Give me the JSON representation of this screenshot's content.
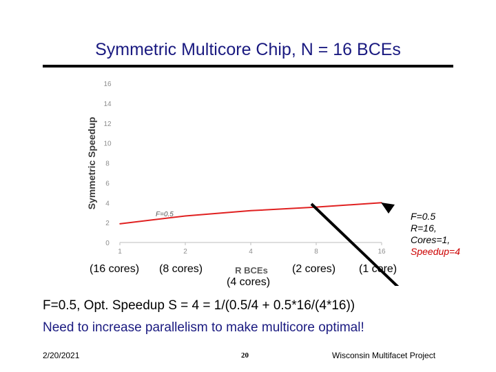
{
  "title": "Symmetric Multicore Chip, N = 16 BCEs",
  "chart_data": {
    "type": "line",
    "title": "",
    "xlabel": "R BCEs",
    "ylabel": "Symmetric Speedup",
    "x_ticks": [
      "1",
      "2",
      "4",
      "8",
      "16"
    ],
    "y_ticks": [
      "0",
      "2",
      "4",
      "6",
      "8",
      "10",
      "12",
      "14",
      "16"
    ],
    "ylim": [
      0,
      16
    ],
    "x_scale": "log2",
    "series": [
      {
        "name": "F=0.5",
        "color": "#e02020",
        "x": [
          1,
          2,
          4,
          8,
          16
        ],
        "y": [
          1.88,
          2.67,
          3.2,
          3.56,
          4.0
        ]
      }
    ],
    "series_label": "F=0.5"
  },
  "core_labels": {
    "c16": "(16 cores)",
    "c8": "(8 cores)",
    "c4": "(4 cores)",
    "c2": "(2 cores)",
    "c1": "(1 core)"
  },
  "callout": {
    "line1": "F=0.5",
    "line2": "R=16,",
    "line3": "Cores=1,",
    "line4": "Speedup=4"
  },
  "equation": "F=0.5, Opt. Speedup S = 4 = 1/(0.5/4 + 0.5*16/(4*16))",
  "note": "Need to increase parallelism to make multicore optimal!",
  "footer": {
    "date": "2/20/2021",
    "page": "20",
    "org": "Wisconsin Multifacet Project"
  },
  "colors": {
    "title": "#1a1a80",
    "series": "#e02020",
    "highlight": "#cc0000"
  }
}
